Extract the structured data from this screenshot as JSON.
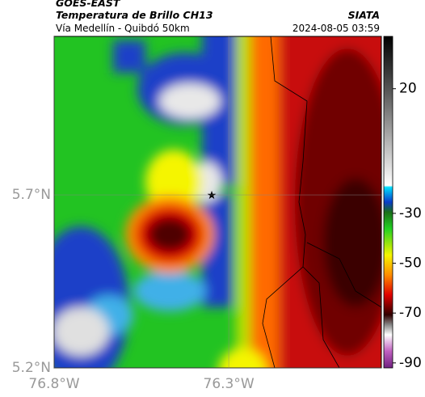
{
  "header": {
    "source": "GOES-EAST",
    "title": "Temperatura de Brillo CH13",
    "subtitle": "Vía Medellín - Quibdó 50km",
    "organization": "SIATA",
    "datetime": "2024-08-05 03:59"
  },
  "map": {
    "lat_lim": [
      5.2,
      6.158
    ],
    "lon_lim": [
      -76.8,
      -75.863
    ],
    "lat_ticks": [
      {
        "value": 5.7,
        "label": "5.7°N"
      },
      {
        "value": 5.2,
        "label": "5.2°N"
      }
    ],
    "lon_ticks": [
      {
        "value": -76.8,
        "label": "76.8°W"
      },
      {
        "value": -76.3,
        "label": "76.3°W"
      }
    ]
  },
  "colorbar": {
    "lim": [
      -92,
      41
    ],
    "ticks": [
      20,
      -30,
      -50,
      -70,
      -90
    ]
  }
}
